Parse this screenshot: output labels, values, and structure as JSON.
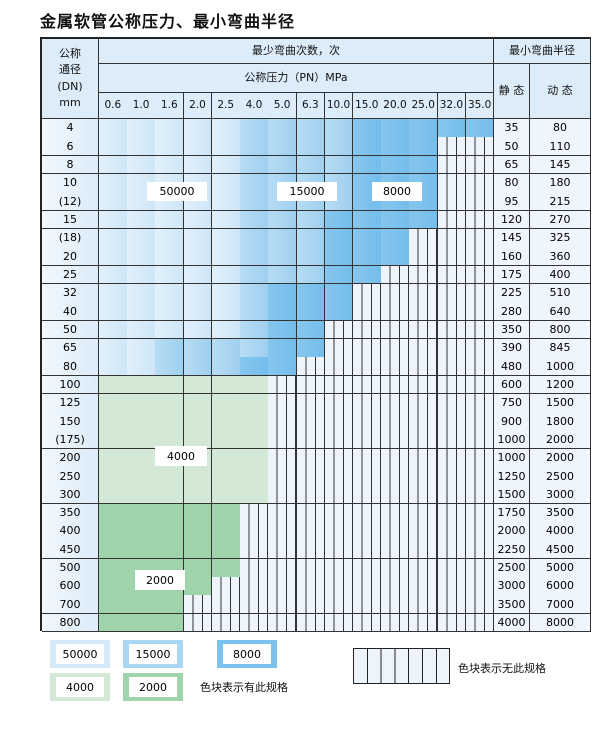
{
  "title": "金属软管公称压力、最小弯曲半径",
  "header": {
    "dn_label": [
      "公称",
      "通径",
      "(DN)",
      "mm"
    ],
    "cycles_label": "最少弯曲次数，次",
    "pressure_label": "公称压力（PN）MPa",
    "radius_label": "最小弯曲半径",
    "static_label": "静 态",
    "dynamic_label": "动 态",
    "pressures": [
      "0.6",
      "1.0",
      "1.6",
      "2.0",
      "2.5",
      "4.0",
      "5.0",
      "6.3",
      "10.0",
      "15.0",
      "20.0",
      "25.0",
      "32.0",
      "35.0"
    ]
  },
  "rows": [
    {
      "dn": "4",
      "static": "35",
      "dynamic": "80",
      "cells": "aaaaabbbbccccc"
    },
    {
      "dn": "6",
      "static": "50",
      "dynamic": "110",
      "cells": "aaaaabbbbcccxx"
    },
    {
      "dn": "8",
      "static": "65",
      "dynamic": "145",
      "cells": "aaaaabbbbcccxx"
    },
    {
      "dn": "10",
      "static": "80",
      "dynamic": "180",
      "cells": "aaaaabbbbcccxx"
    },
    {
      "dn": "(12)",
      "static": "95",
      "dynamic": "215",
      "cells": "aaaaabbbbcccxx"
    },
    {
      "dn": "15",
      "static": "120",
      "dynamic": "270",
      "cells": "aaaaabbbccccxx"
    },
    {
      "dn": "(18)",
      "static": "145",
      "dynamic": "325",
      "cells": "aaaaabbbcccxxx"
    },
    {
      "dn": "20",
      "static": "160",
      "dynamic": "360",
      "cells": "aaaaabbbcccxxx"
    },
    {
      "dn": "25",
      "static": "175",
      "dynamic": "400",
      "cells": "aaaaabbbccxxxx"
    },
    {
      "dn": "32",
      "static": "225",
      "dynamic": "510",
      "cells": "aaaaabcccxxxxx"
    },
    {
      "dn": "40",
      "static": "280",
      "dynamic": "640",
      "cells": "aaaaabcccxxxxx"
    },
    {
      "dn": "50",
      "static": "350",
      "dynamic": "800",
      "cells": "aaaaabccxxxxxx"
    },
    {
      "dn": "65",
      "static": "390",
      "dynamic": "845",
      "cells": "aabbbbccxxxxxx"
    },
    {
      "dn": "80",
      "static": "480",
      "dynamic": "1000",
      "cells": "aabbbccxxxxxxx"
    },
    {
      "dn": "100",
      "static": "600",
      "dynamic": "1200",
      "cells": "ddddddxxxxxxxx"
    },
    {
      "dn": "125",
      "static": "750",
      "dynamic": "1500",
      "cells": "ddddddxxxxxxxx"
    },
    {
      "dn": "150",
      "static": "900",
      "dynamic": "1800",
      "cells": "ddddddxxxxxxxx"
    },
    {
      "dn": "(175)",
      "static": "1000",
      "dynamic": "2000",
      "cells": "ddddddxxxxxxxx"
    },
    {
      "dn": "200",
      "static": "1000",
      "dynamic": "2000",
      "cells": "ddddddxxxxxxxx"
    },
    {
      "dn": "250",
      "static": "1250",
      "dynamic": "2500",
      "cells": "ddddddxxxxxxxx"
    },
    {
      "dn": "300",
      "static": "1500",
      "dynamic": "3000",
      "cells": "ddddddxxxxxxxx"
    },
    {
      "dn": "350",
      "static": "1750",
      "dynamic": "3500",
      "cells": "eeeeexxxxxxxxx"
    },
    {
      "dn": "400",
      "static": "2000",
      "dynamic": "4000",
      "cells": "eeeeexxxxxxxxx"
    },
    {
      "dn": "450",
      "static": "2250",
      "dynamic": "4500",
      "cells": "eeeeexxxxxxxxx"
    },
    {
      "dn": "500",
      "static": "2500",
      "dynamic": "5000",
      "cells": "eeeeexxxxxxxxx"
    },
    {
      "dn": "600",
      "static": "3000",
      "dynamic": "6000",
      "cells": "eeeexxxxxxxxxx"
    },
    {
      "dn": "700",
      "static": "3500",
      "dynamic": "7000",
      "cells": "eeexxxxxxxxxxx"
    },
    {
      "dn": "800",
      "static": "4000",
      "dynamic": "8000",
      "cells": "eeexxxxxxxxxxx"
    }
  ],
  "region_labels": {
    "a": "50000",
    "b": "15000",
    "c": "8000",
    "d": "4000",
    "e": "2000"
  },
  "colors": {
    "a": "#d6ebf9",
    "b": "#a9d6f2",
    "c": "#7cc2ed",
    "d": "#d4e9d5",
    "e": "#9fd3ab",
    "hatch_bg": "#edf4fb"
  },
  "legend": {
    "items": [
      "50000",
      "15000",
      "8000",
      "4000",
      "2000"
    ],
    "has_spec_note": "色块表示有此规格",
    "no_spec_note": "色块表示无此规格"
  }
}
